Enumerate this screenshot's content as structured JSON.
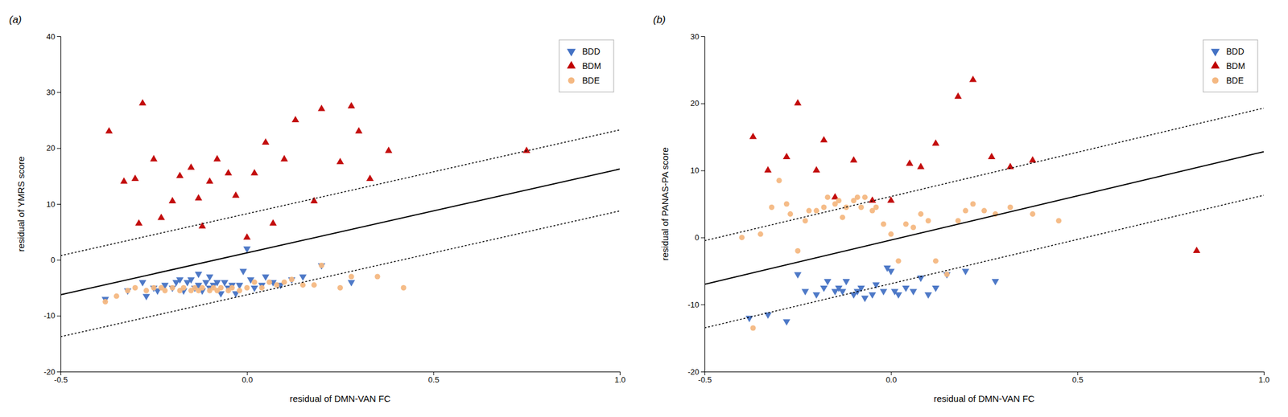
{
  "chart_data": [
    {
      "type": "scatter",
      "title": "(a)",
      "x_label": "residual of DMN-VAN FC",
      "y_label": "residual of YMRS score",
      "xlim": [
        -0.5,
        1.0
      ],
      "ylim": [
        -20,
        40
      ],
      "xticks": [
        -0.5,
        {
          "value": 0,
          "label": "0.0"
        },
        0.5,
        {
          "value": 1,
          "label": "1.0"
        }
      ],
      "yticks": [
        -20,
        -10,
        0,
        10,
        20,
        30,
        40
      ],
      "legend": "upper right",
      "series": [
        {
          "name": "BDD",
          "type": "scatter",
          "marker": "triangle-down",
          "color": "#4472C4",
          "x": [
            -0.38,
            -0.32,
            -0.28,
            -0.27,
            -0.25,
            -0.24,
            -0.22,
            -0.2,
            -0.19,
            -0.18,
            -0.17,
            -0.16,
            -0.15,
            -0.14,
            -0.13,
            -0.13,
            -0.12,
            -0.11,
            -0.1,
            -0.1,
            -0.09,
            -0.08,
            -0.07,
            -0.06,
            -0.05,
            -0.04,
            -0.03,
            -0.02,
            -0.01,
            0.0,
            0.01,
            0.02,
            0.04,
            0.05,
            0.07,
            0.09,
            0.12,
            0.15,
            0.2,
            0.28
          ],
          "values": [
            -7.0,
            -5.5,
            -4.0,
            -6.5,
            -5.0,
            -5.5,
            -4.5,
            -5.0,
            -4.0,
            -3.5,
            -5.5,
            -4.0,
            -3.5,
            -5.0,
            -4.5,
            -2.5,
            -5.5,
            -4.0,
            -5.0,
            -3.0,
            -4.5,
            -4.0,
            -6.0,
            -4.0,
            -5.0,
            -4.5,
            -6.0,
            -4.5,
            -2.0,
            2.0,
            -3.5,
            -5.0,
            -4.5,
            -3.0,
            -4.0,
            -4.5,
            -3.5,
            -3.0,
            -1.0,
            -4.0
          ]
        },
        {
          "name": "BDM",
          "type": "scatter",
          "marker": "triangle-up",
          "color": "#C00000",
          "x": [
            -0.37,
            -0.33,
            -0.3,
            -0.29,
            -0.28,
            -0.25,
            -0.23,
            -0.2,
            -0.18,
            -0.15,
            -0.13,
            -0.12,
            -0.1,
            -0.08,
            -0.05,
            -0.03,
            0.0,
            0.02,
            0.05,
            0.07,
            0.1,
            0.13,
            0.18,
            0.2,
            0.25,
            0.28,
            0.3,
            0.33,
            0.38,
            0.75
          ],
          "values": [
            23.0,
            14.0,
            14.5,
            6.5,
            28.0,
            18.0,
            7.5,
            10.5,
            15.0,
            16.5,
            11.0,
            6.0,
            14.0,
            18.0,
            15.5,
            11.5,
            4.0,
            15.5,
            21.0,
            6.5,
            18.0,
            25.0,
            10.5,
            27.0,
            17.5,
            27.5,
            23.0,
            14.5,
            19.5,
            19.5
          ]
        },
        {
          "name": "BDE",
          "type": "scatter",
          "marker": "circle",
          "color": "#F4B882",
          "x": [
            -0.38,
            -0.35,
            -0.32,
            -0.3,
            -0.27,
            -0.25,
            -0.23,
            -0.22,
            -0.2,
            -0.18,
            -0.17,
            -0.15,
            -0.14,
            -0.13,
            -0.12,
            -0.1,
            -0.09,
            -0.08,
            -0.07,
            -0.05,
            -0.04,
            -0.02,
            0.0,
            0.02,
            0.04,
            0.06,
            0.08,
            0.1,
            0.12,
            0.15,
            0.18,
            0.2,
            0.25,
            0.28,
            0.35,
            0.42
          ],
          "values": [
            -7.5,
            -6.5,
            -5.5,
            -5.0,
            -5.5,
            -5.0,
            -5.0,
            -5.5,
            -5.0,
            -5.5,
            -5.0,
            -5.5,
            -5.0,
            -5.5,
            -5.0,
            -5.5,
            -5.0,
            -5.5,
            -5.0,
            -5.5,
            -5.0,
            -5.5,
            -5.0,
            -4.0,
            -5.0,
            -4.0,
            -4.5,
            -4.0,
            -3.5,
            -4.5,
            -4.5,
            -1.0,
            -5.0,
            -3.0,
            -3.0,
            -5.0
          ]
        },
        {
          "type": "line",
          "line_style": "solid",
          "color": "#000000",
          "x": [
            -0.5,
            1.0
          ],
          "values": [
            -6.25,
            16.25
          ]
        },
        {
          "type": "line",
          "line_style": "dotted",
          "color": "#000000",
          "x": [
            -0.5,
            1.0
          ],
          "values": [
            0.75,
            23.25
          ]
        },
        {
          "type": "line",
          "line_style": "dotted",
          "color": "#000000",
          "x": [
            -0.5,
            1.0
          ],
          "values": [
            -13.75,
            8.75
          ]
        }
      ]
    },
    {
      "type": "scatter",
      "title": "(b)",
      "x_label": "residual of DMN-VAN FC",
      "y_label": "residual of PANAS-PA score",
      "xlim": [
        -0.5,
        1.0
      ],
      "ylim": [
        -20,
        30
      ],
      "xticks": [
        -0.5,
        {
          "value": 0,
          "label": "0.0"
        },
        0.5,
        {
          "value": 1,
          "label": "1.0"
        }
      ],
      "yticks": [
        -20,
        -10,
        0,
        10,
        20,
        30
      ],
      "legend": "upper right",
      "series": [
        {
          "name": "BDD",
          "type": "scatter",
          "marker": "triangle-down",
          "color": "#4472C4",
          "x": [
            -0.38,
            -0.33,
            -0.28,
            -0.25,
            -0.23,
            -0.2,
            -0.18,
            -0.17,
            -0.15,
            -0.14,
            -0.13,
            -0.12,
            -0.1,
            -0.09,
            -0.08,
            -0.07,
            -0.05,
            -0.04,
            -0.02,
            -0.01,
            0.0,
            0.01,
            0.02,
            0.04,
            0.06,
            0.08,
            0.1,
            0.12,
            0.15,
            0.2,
            0.28
          ],
          "values": [
            -12.0,
            -11.5,
            -12.5,
            -5.5,
            -8.0,
            -8.5,
            -7.5,
            -6.5,
            -8.0,
            -7.5,
            -8.0,
            -6.5,
            -8.5,
            -8.0,
            -7.5,
            -9.0,
            -8.5,
            -7.0,
            -8.0,
            -4.5,
            -5.0,
            -8.0,
            -8.5,
            -7.5,
            -8.0,
            -6.0,
            -8.5,
            -7.5,
            -5.5,
            -5.0,
            -6.5
          ]
        },
        {
          "name": "BDM",
          "type": "scatter",
          "marker": "triangle-up",
          "color": "#C00000",
          "x": [
            -0.37,
            -0.33,
            -0.28,
            -0.25,
            -0.2,
            -0.18,
            -0.15,
            -0.1,
            -0.05,
            0.0,
            0.05,
            0.08,
            0.12,
            0.18,
            0.22,
            0.27,
            0.32,
            0.38,
            0.82
          ],
          "values": [
            15.0,
            10.0,
            12.0,
            20.0,
            10.0,
            14.5,
            6.0,
            11.5,
            5.5,
            5.5,
            11.0,
            10.5,
            14.0,
            21.0,
            23.5,
            12.0,
            10.5,
            11.5,
            -2.0
          ]
        },
        {
          "name": "BDE",
          "type": "scatter",
          "marker": "circle",
          "color": "#F4B882",
          "x": [
            -0.4,
            -0.37,
            -0.35,
            -0.32,
            -0.3,
            -0.28,
            -0.27,
            -0.25,
            -0.23,
            -0.22,
            -0.2,
            -0.18,
            -0.17,
            -0.15,
            -0.14,
            -0.13,
            -0.12,
            -0.1,
            -0.09,
            -0.08,
            -0.07,
            -0.05,
            -0.04,
            -0.02,
            0.0,
            0.02,
            0.04,
            0.06,
            0.08,
            0.1,
            0.12,
            0.15,
            0.18,
            0.2,
            0.22,
            0.25,
            0.28,
            0.32,
            0.38,
            0.45
          ],
          "values": [
            0.0,
            -13.5,
            0.5,
            4.5,
            8.5,
            5.0,
            3.5,
            -2.0,
            2.5,
            4.0,
            4.0,
            4.5,
            6.0,
            5.0,
            5.5,
            3.0,
            4.5,
            5.5,
            6.0,
            4.5,
            6.0,
            4.0,
            4.5,
            2.0,
            0.5,
            -3.5,
            2.0,
            1.5,
            3.5,
            2.5,
            -3.5,
            -5.5,
            2.5,
            4.0,
            5.0,
            4.0,
            3.5,
            4.5,
            3.5,
            2.5
          ]
        },
        {
          "type": "line",
          "line_style": "solid",
          "color": "#000000",
          "x": [
            -0.5,
            1.0
          ],
          "values": [
            -6.977272727272727,
            12.795454545454545
          ]
        },
        {
          "type": "line",
          "line_style": "dotted",
          "color": "#000000",
          "x": [
            -0.5,
            1.0
          ],
          "values": [
            -0.4772727272727273,
            19.295454545454547
          ]
        },
        {
          "type": "line",
          "line_style": "dotted",
          "color": "#000000",
          "x": [
            -0.5,
            1.0
          ],
          "values": [
            -13.477272727272727,
            6.295454545454545
          ]
        }
      ]
    }
  ]
}
